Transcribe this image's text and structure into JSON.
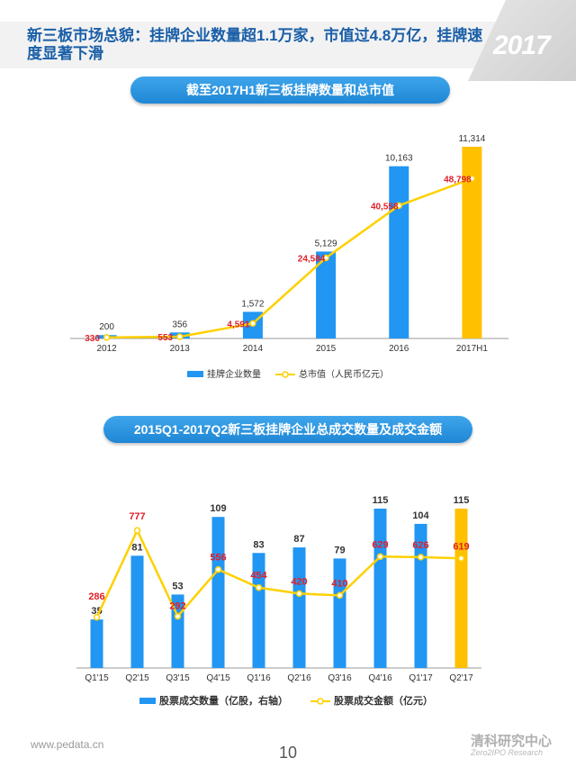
{
  "page": {
    "title": "新三板市场总貌：挂牌企业数量超1.1万家，市值过4.8万亿，挂牌速度显著下滑",
    "year_mark": "2017",
    "footer_url": "www.pedata.cn",
    "page_number": "10",
    "logo": "清科研究中心",
    "logo_sub": "Zero2IPO Research"
  },
  "chart_data": [
    {
      "type": "bar",
      "title": "截至2017H1新三板挂牌数量和总市值",
      "categories": [
        "2012",
        "2013",
        "2014",
        "2015",
        "2016",
        "2017H1"
      ],
      "series": [
        {
          "name": "挂牌企业数量",
          "kind": "bar",
          "values": [
            200,
            356,
            1572,
            5129,
            10163,
            11314
          ],
          "color": "#2196f3",
          "highlight_color": "#ffc000",
          "highlight_index": 5
        },
        {
          "name": "总市值（人民币亿元）",
          "kind": "line",
          "values": [
            330,
            553,
            4591,
            24584,
            40558,
            48798
          ],
          "color": "#ffd000",
          "label_color": "#e0202a"
        }
      ],
      "bar_labels": [
        "200",
        "356",
        "1,572",
        "5,129",
        "10,163",
        "11,314"
      ],
      "line_labels": [
        "330",
        "553",
        "4,591",
        "24,584",
        "40,558",
        "48,798"
      ],
      "legend_position": "bottom"
    },
    {
      "type": "bar",
      "title": "2015Q1-2017Q2新三板挂牌企业总成交数量及成交金额",
      "categories": [
        "Q1'15",
        "Q2'15",
        "Q3'15",
        "Q4'15",
        "Q1'16",
        "Q2'16",
        "Q3'16",
        "Q4'16",
        "Q1'17",
        "Q2'17"
      ],
      "series": [
        {
          "name": "股票成交数量（亿股，右轴）",
          "kind": "bar",
          "values": [
            35,
            81,
            53,
            109,
            83,
            87,
            79,
            115,
            104,
            115
          ],
          "color": "#2196f3",
          "highlight_color": "#ffc000",
          "highlight_index": 9
        },
        {
          "name": "股票成交金额（亿元）",
          "kind": "line",
          "values": [
            286,
            777,
            292,
            556,
            454,
            420,
            410,
            629,
            626,
            619
          ],
          "color": "#ffd000",
          "label_color": "#e0202a"
        }
      ],
      "bar_labels": [
        "35",
        "81",
        "53",
        "109",
        "83",
        "87",
        "79",
        "115",
        "104",
        "115"
      ],
      "line_labels": [
        "286",
        "777",
        "292",
        "556",
        "454",
        "420",
        "410",
        "629",
        "626",
        "619"
      ],
      "legend_position": "bottom"
    }
  ]
}
